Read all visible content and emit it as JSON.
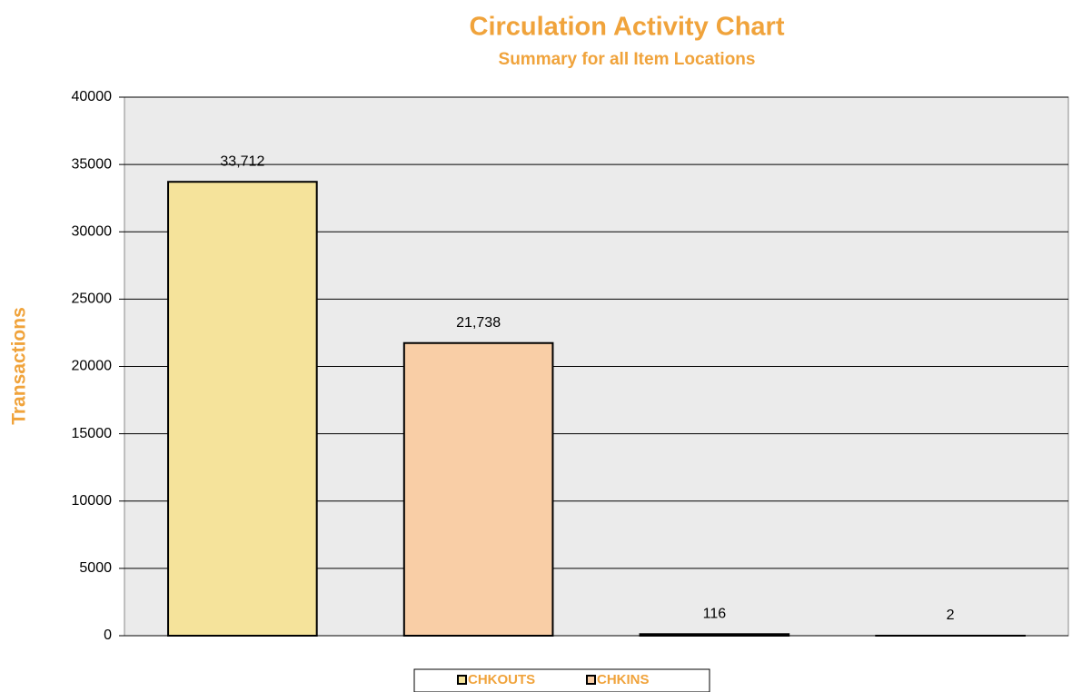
{
  "chart_data": {
    "type": "bar",
    "title": "Circulation Activity Chart",
    "subtitle": "Summary for all Item Locations",
    "ylabel": "Transactions",
    "categories": [
      null,
      null,
      null,
      null
    ],
    "values": [
      33712,
      21738,
      116,
      2
    ],
    "value_labels": [
      "33,712",
      "21,738",
      "116",
      "2"
    ],
    "colors": [
      "#f5e39b",
      "#f9cea6",
      "#9999ff",
      "#993366"
    ],
    "legend": [
      {
        "name": "CHKOUTS",
        "color": "#f5e39b"
      },
      {
        "name": "CHKINS",
        "color": "#f9cea6"
      }
    ],
    "ylim": [
      0,
      40000
    ],
    "yticks": [
      0,
      5000,
      10000,
      15000,
      20000,
      25000,
      30000,
      35000,
      40000
    ],
    "grid": true
  }
}
